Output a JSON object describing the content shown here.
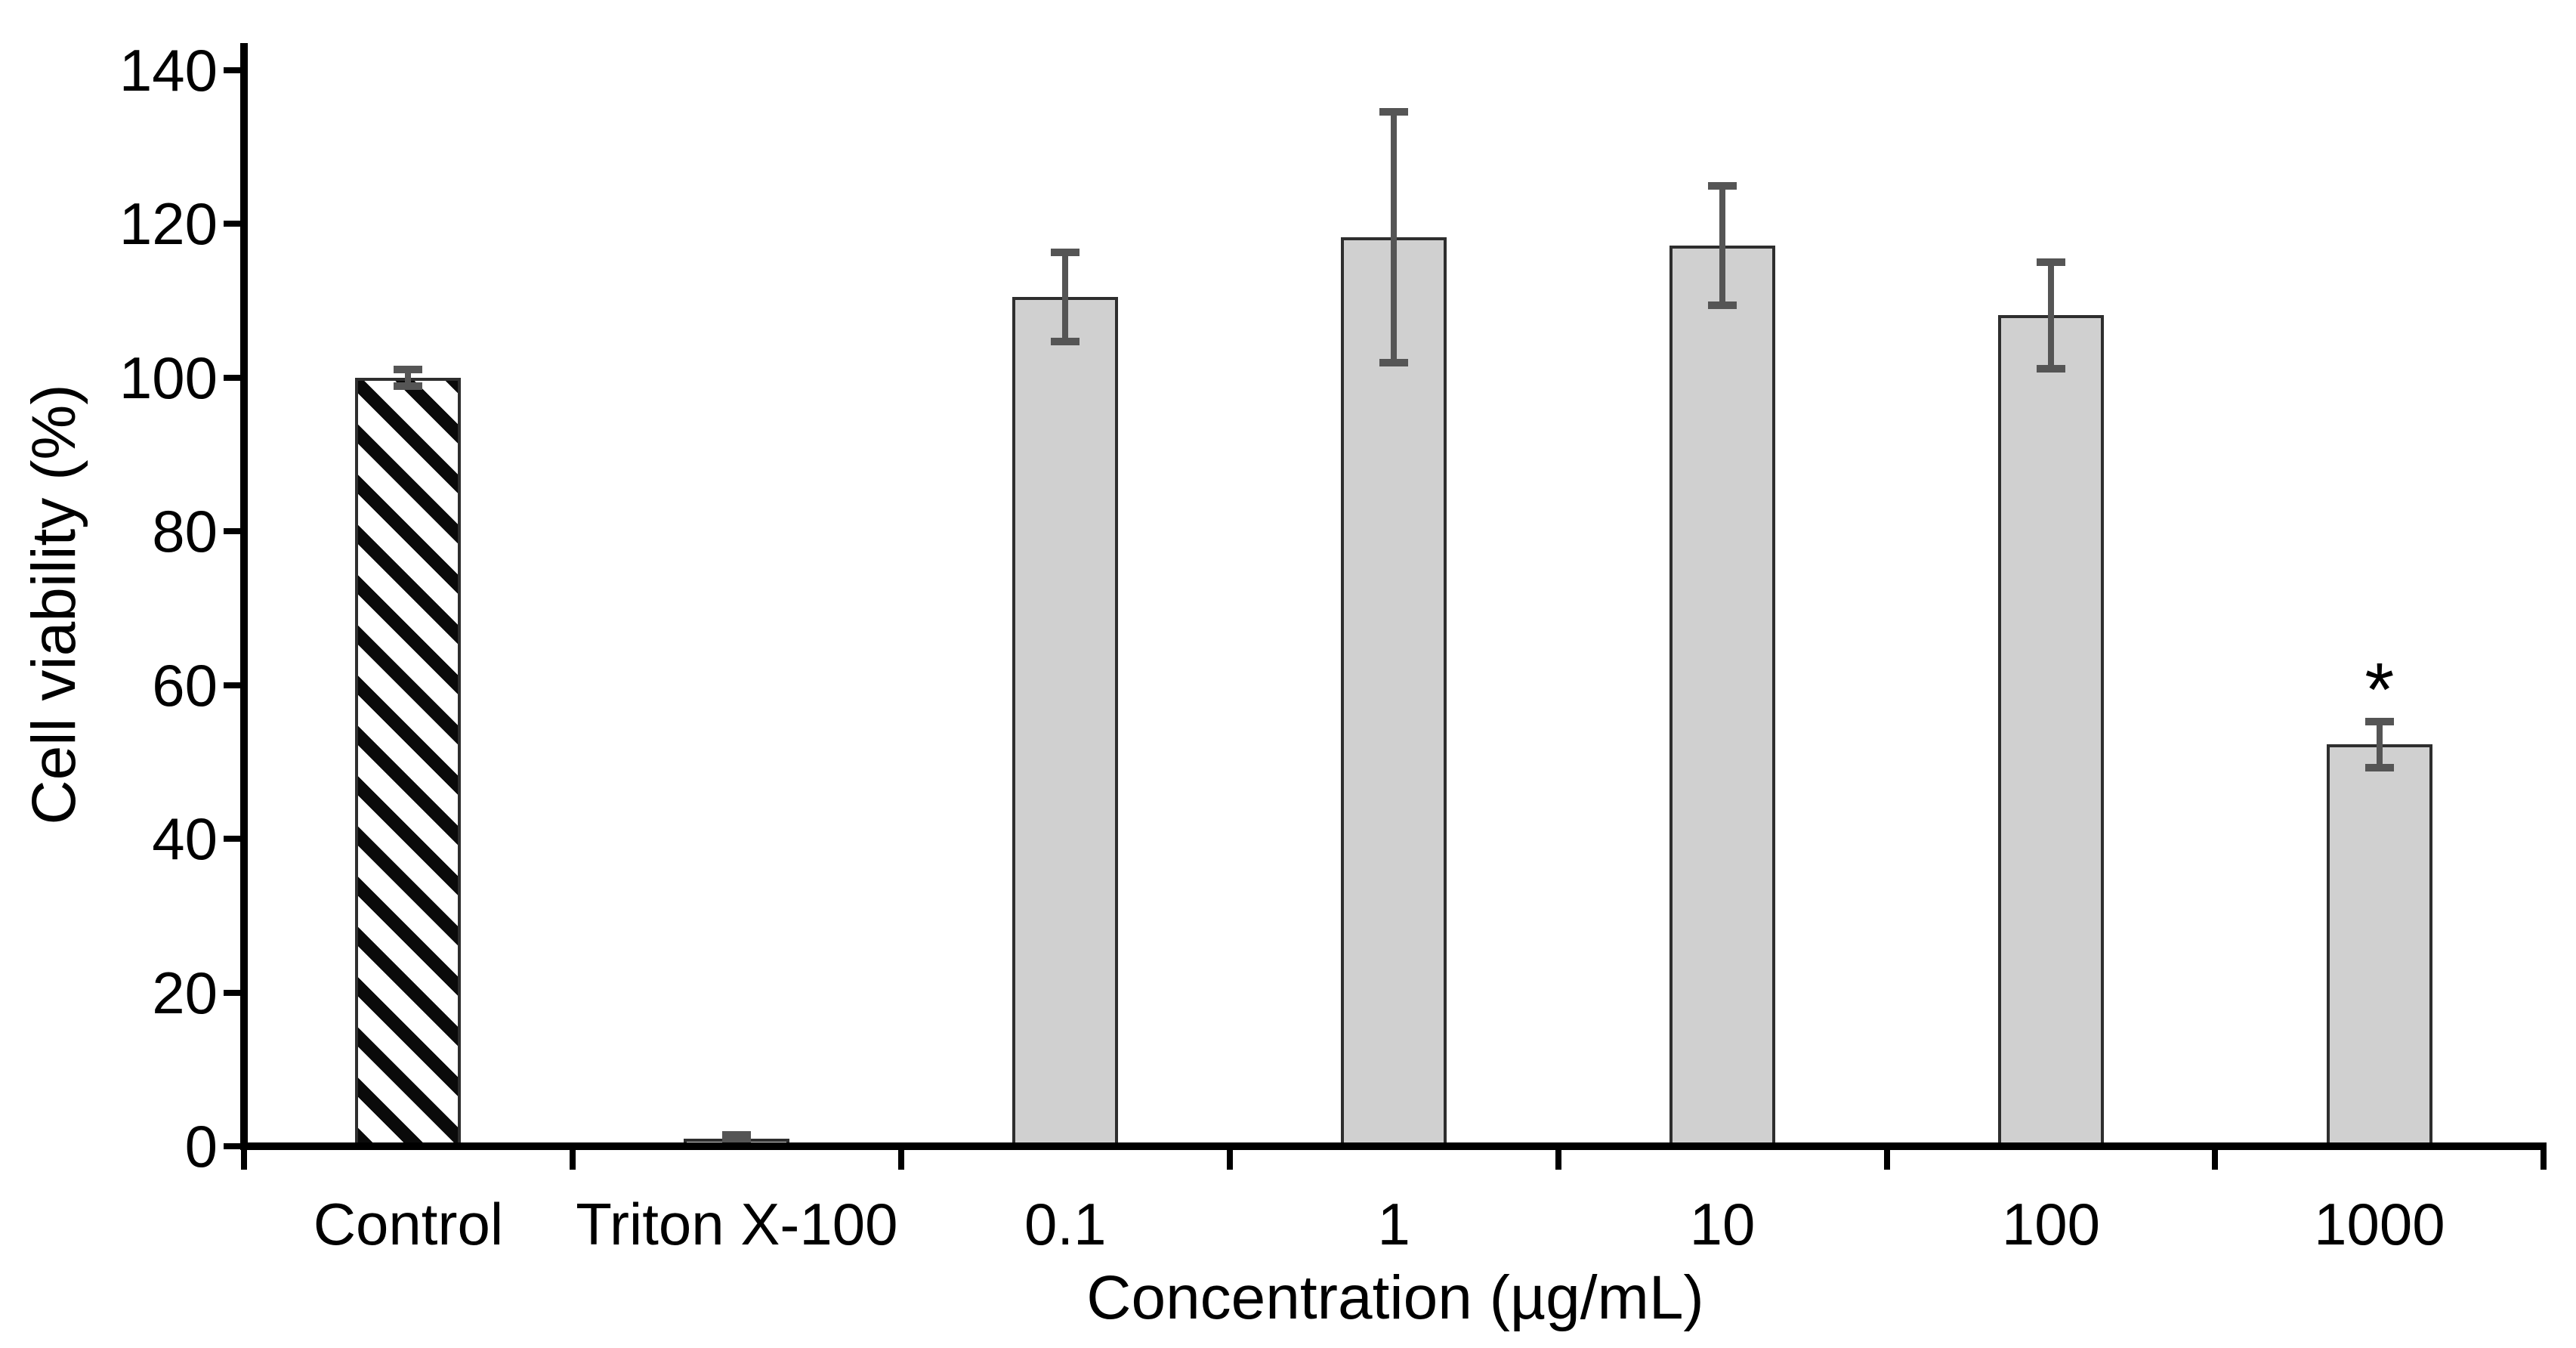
{
  "chart_data": {
    "type": "bar",
    "title": "",
    "xlabel": "Concentration (µg/mL)",
    "ylabel": "Cell viability (%)",
    "categories": [
      "Control",
      "Triton X-100",
      "0.1",
      "1",
      "10",
      "100",
      "1000"
    ],
    "values": [
      100,
      1,
      110.5,
      118.3,
      117.2,
      108.1,
      52.3
    ],
    "errors": [
      1.1,
      0.5,
      5.8,
      16.3,
      7.8,
      6.9,
      3.0
    ],
    "bar_patterns": [
      "diagonal-hatch",
      "solid",
      "solid",
      "solid",
      "solid",
      "solid",
      "solid"
    ],
    "annotations": [
      {
        "category_index": 6,
        "text": "*"
      }
    ],
    "yticks": [
      0,
      20,
      40,
      60,
      80,
      100,
      120,
      140
    ],
    "ylim": [
      0,
      140
    ],
    "grid": false,
    "legend": null,
    "error_bars": "symmetric, dark gray caps",
    "colors": {
      "bar_fill": "#d0d0d0",
      "bar_edge": "#2e2e2e",
      "hatch_foreground": "#0a0a0a",
      "hatch_background": "#ffffff",
      "error_bar": "#555555",
      "axis": "#000000",
      "text": "#000000",
      "background": "#ffffff"
    }
  }
}
